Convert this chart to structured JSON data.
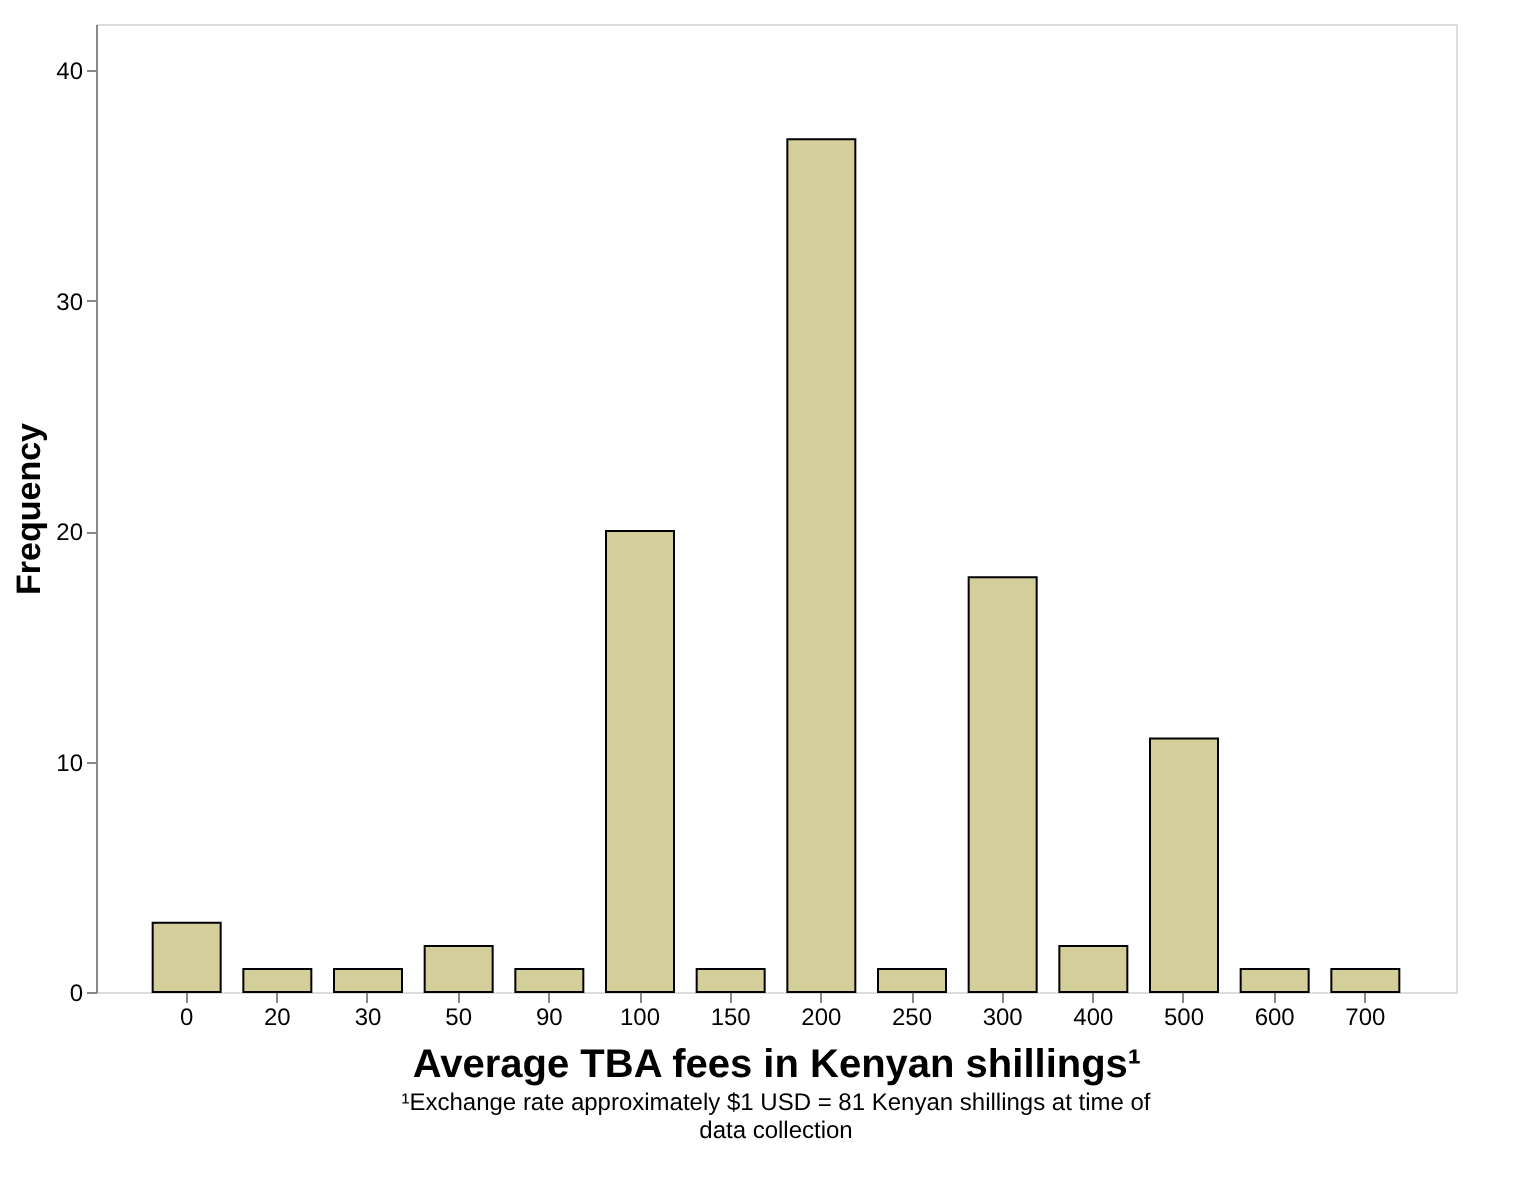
{
  "chart_data": {
    "type": "bar",
    "xlabel": "Average TBA fees in Kenyan shillings¹",
    "ylabel": "Frequency",
    "categories": [
      "0",
      "20",
      "30",
      "50",
      "90",
      "100",
      "150",
      "200",
      "250",
      "300",
      "400",
      "500",
      "600",
      "700"
    ],
    "values": [
      3,
      1,
      1,
      2,
      1,
      20,
      1,
      37,
      1,
      18,
      2,
      11,
      1,
      1
    ],
    "color": "#d4cf9a",
    "ylim": [
      0,
      42
    ],
    "yticks": [
      0,
      10,
      20,
      30,
      40
    ],
    "grid": false,
    "annotations": [
      "¹Exchange rate approximately $1 USD = 81 Kenyan shillings at time of data collection"
    ]
  }
}
